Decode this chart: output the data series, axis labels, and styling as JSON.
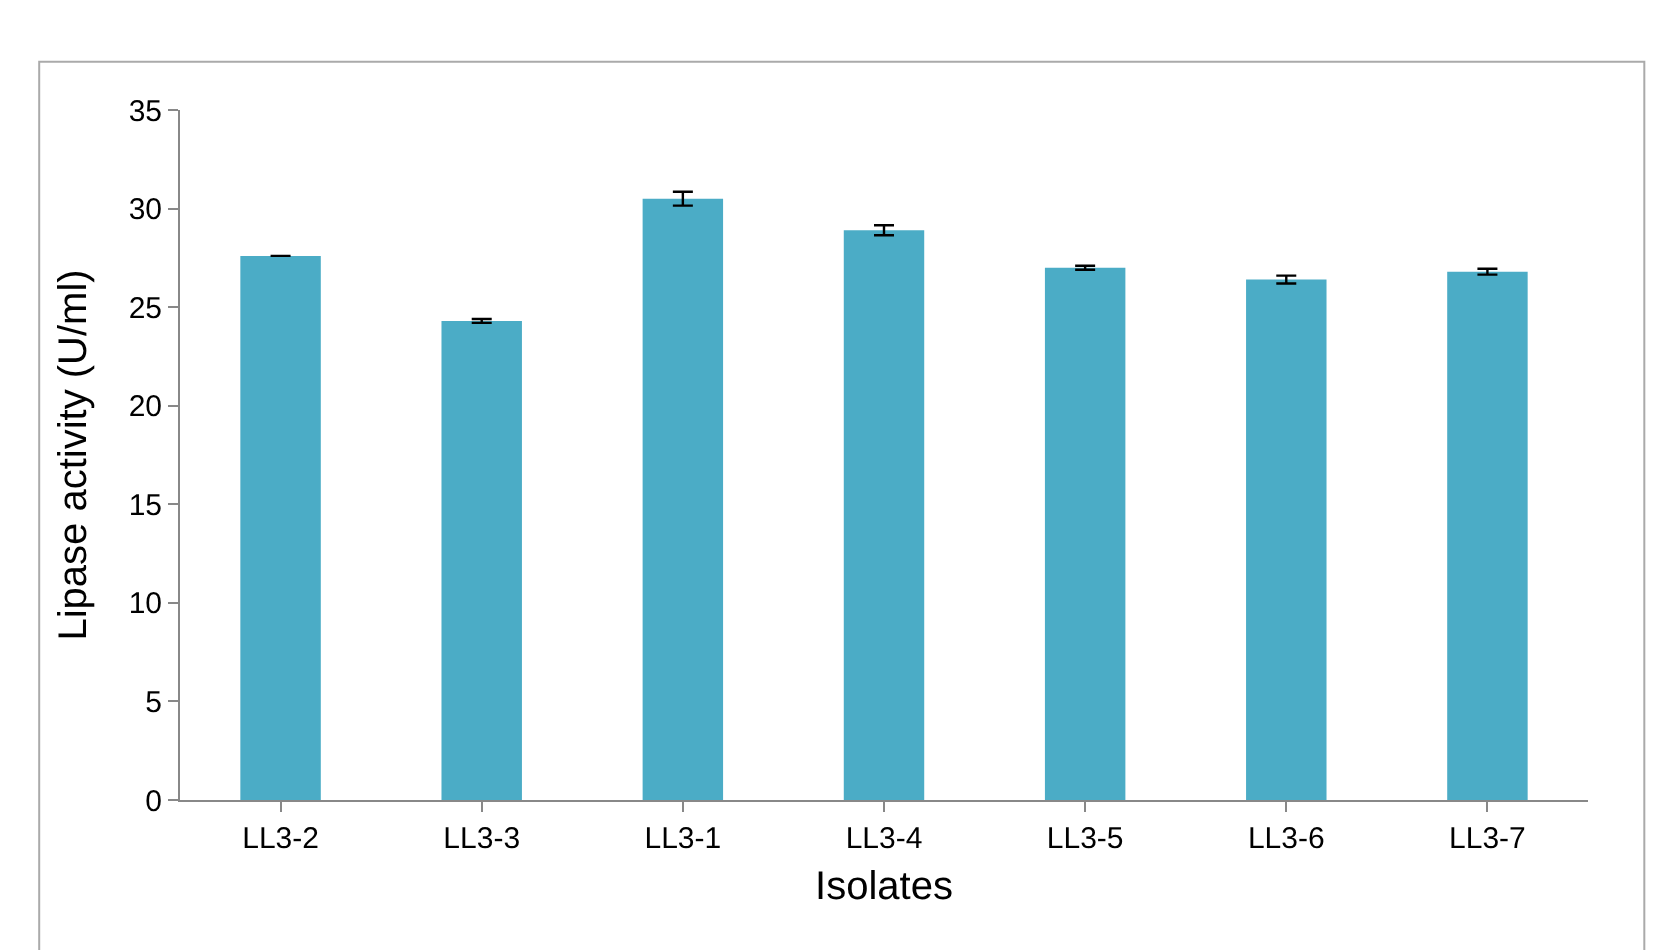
{
  "chart_data": {
    "type": "bar",
    "xlabel": "Isolates",
    "ylabel": "Lipase activity (U/ml)",
    "categories": [
      "LL3-2",
      "LL3-3",
      "LL3-1",
      "LL3-4",
      "LL3-5",
      "LL3-6",
      "LL3-7"
    ],
    "values": [
      27.6,
      24.3,
      30.5,
      28.9,
      27.0,
      26.4,
      26.8
    ],
    "errors": [
      null,
      0.1,
      0.35,
      0.25,
      0.1,
      0.2,
      0.15
    ],
    "color": "#4bacc6",
    "ylim": [
      0,
      35
    ],
    "yticks": [
      0,
      5,
      10,
      15,
      20,
      25,
      30,
      35
    ],
    "legend": false
  }
}
